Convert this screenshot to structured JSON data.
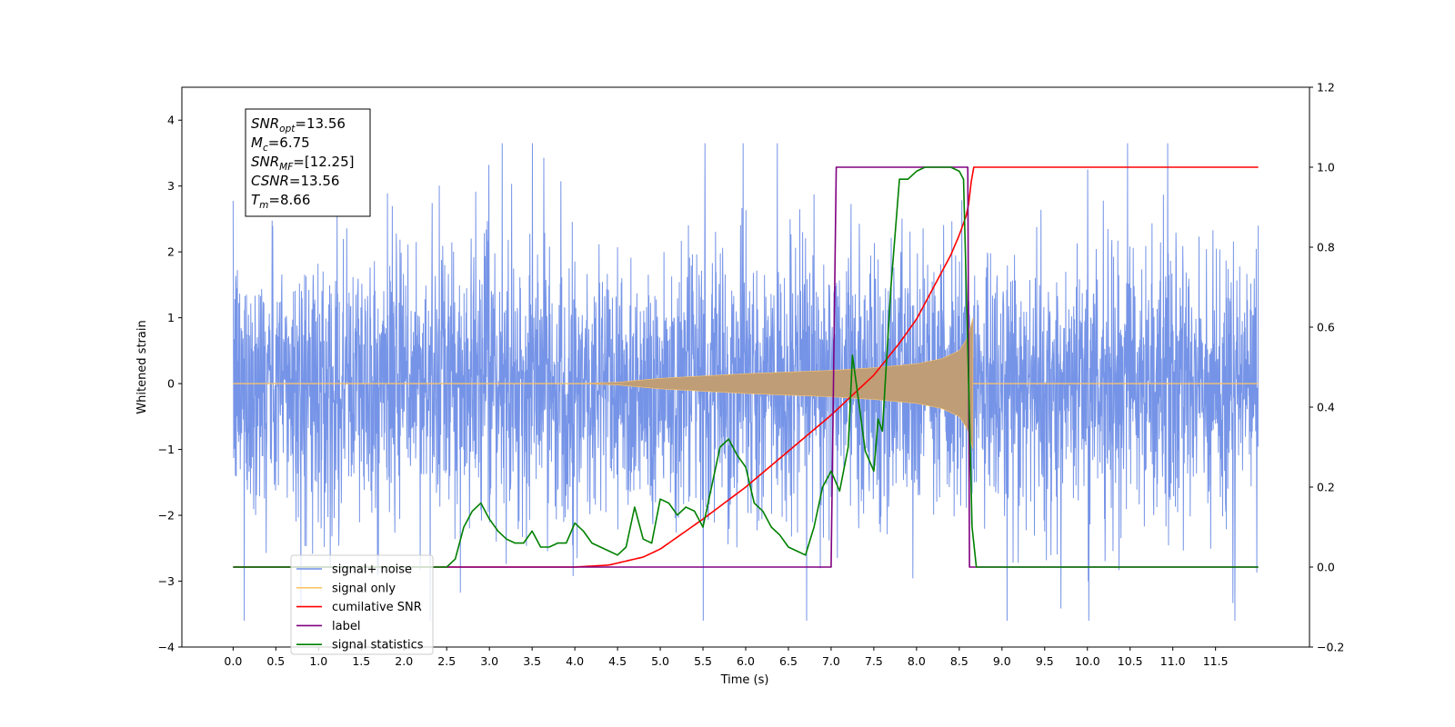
{
  "chart_data": {
    "type": "line",
    "xlabel": "Time (s)",
    "ylabel": "Whitened strain",
    "xlim": [
      -0.6,
      12.6
    ],
    "ylim": [
      -4,
      4.5
    ],
    "ylim_right": [
      -0.2,
      1.2
    ],
    "xticks": [
      "0.0",
      "0.5",
      "1.0",
      "1.5",
      "2.0",
      "2.5",
      "3.0",
      "3.5",
      "4.0",
      "4.5",
      "5.0",
      "5.5",
      "6.0",
      "6.5",
      "7.0",
      "7.5",
      "8.0",
      "8.5",
      "9.0",
      "9.5",
      "10.0",
      "10.5",
      "11.0",
      "11.5"
    ],
    "yticks": [
      "−4",
      "−3",
      "−2",
      "−1",
      "0",
      "1",
      "2",
      "3",
      "4"
    ],
    "yticks_right": [
      "−0.2",
      "0.0",
      "0.2",
      "0.4",
      "0.6",
      "0.8",
      "1.0",
      "1.2"
    ],
    "annotation": {
      "lines": [
        {
          "sym": "SNR",
          "sub": "opt",
          "val": "=13.56"
        },
        {
          "sym": "M",
          "sub": "c",
          "val": "=6.75"
        },
        {
          "sym": "SNR",
          "sub": "MF",
          "val": "=[12.25]"
        },
        {
          "sym": "CSNR",
          "sub": "",
          "val": "=13.56"
        },
        {
          "sym": "T",
          "sub": "m",
          "val": "=8.66"
        }
      ]
    },
    "legend": {
      "placement": "lower-left",
      "entries": [
        {
          "label": "signal+ noise",
          "color": "#6f8ee6"
        },
        {
          "label": "signal only",
          "color": "#ffc566"
        },
        {
          "label": "cumilative SNR",
          "color": "#ff0000"
        },
        {
          "label": "label",
          "color": "#800080"
        },
        {
          "label": "signal statistics",
          "color": "#008000"
        }
      ]
    },
    "series": [
      {
        "name": "signal+ noise",
        "axis": "left",
        "color": "#6f8ee6",
        "x_range": [
          0.0,
          12.0
        ],
        "typical_envelope": [
          -2.3,
          2.3
        ],
        "peak_range": [
          -3.6,
          3.65
        ]
      },
      {
        "name": "signal only",
        "axis": "left",
        "color": "#ffc566",
        "fill_color": "#bf9d76",
        "envelope_x": [
          0.0,
          4.0,
          4.5,
          5.0,
          6.0,
          7.0,
          7.5,
          8.0,
          8.3,
          8.5,
          8.6,
          8.66,
          8.67,
          12.0
        ],
        "envelope_y": [
          0.0,
          0.0,
          0.02,
          0.08,
          0.15,
          0.2,
          0.24,
          0.3,
          0.38,
          0.5,
          0.7,
          1.0,
          0.0,
          0.0
        ]
      },
      {
        "name": "cumilative SNR",
        "axis": "right",
        "color": "#ff0000",
        "x": [
          0.0,
          4.0,
          4.4,
          4.8,
          5.0,
          5.5,
          6.0,
          6.5,
          7.0,
          7.5,
          7.8,
          8.0,
          8.2,
          8.4,
          8.5,
          8.6,
          8.66,
          12.0
        ],
        "y": [
          0.0,
          0.0,
          0.005,
          0.025,
          0.045,
          0.12,
          0.2,
          0.29,
          0.38,
          0.48,
          0.56,
          0.62,
          0.7,
          0.78,
          0.83,
          0.89,
          1.0,
          1.0
        ]
      },
      {
        "name": "label",
        "axis": "right",
        "color": "#800080",
        "x": [
          0.0,
          7.0,
          7.06,
          8.6,
          8.62,
          12.0
        ],
        "y": [
          0.0,
          0.0,
          1.0,
          1.0,
          0.0,
          0.0
        ]
      },
      {
        "name": "signal statistics",
        "axis": "right",
        "color": "#008000",
        "x": [
          0.0,
          2.5,
          2.6,
          2.7,
          2.8,
          2.9,
          3.0,
          3.1,
          3.2,
          3.3,
          3.4,
          3.5,
          3.6,
          3.7,
          3.8,
          3.9,
          4.0,
          4.1,
          4.2,
          4.3,
          4.4,
          4.5,
          4.6,
          4.7,
          4.8,
          4.9,
          5.0,
          5.1,
          5.2,
          5.3,
          5.4,
          5.5,
          5.6,
          5.7,
          5.8,
          5.9,
          6.0,
          6.1,
          6.2,
          6.3,
          6.4,
          6.5,
          6.6,
          6.7,
          6.8,
          6.9,
          7.0,
          7.1,
          7.2,
          7.25,
          7.3,
          7.4,
          7.5,
          7.55,
          7.6,
          7.7,
          7.8,
          7.9,
          8.0,
          8.1,
          8.2,
          8.3,
          8.4,
          8.5,
          8.55,
          8.6,
          8.65,
          8.7,
          8.75,
          9.0,
          12.0
        ],
        "y": [
          0.0,
          0.0,
          0.02,
          0.1,
          0.14,
          0.16,
          0.12,
          0.09,
          0.07,
          0.06,
          0.06,
          0.09,
          0.05,
          0.05,
          0.06,
          0.06,
          0.11,
          0.09,
          0.06,
          0.05,
          0.04,
          0.03,
          0.05,
          0.15,
          0.07,
          0.06,
          0.17,
          0.16,
          0.13,
          0.15,
          0.14,
          0.1,
          0.2,
          0.3,
          0.32,
          0.28,
          0.25,
          0.16,
          0.14,
          0.1,
          0.08,
          0.05,
          0.04,
          0.03,
          0.1,
          0.2,
          0.24,
          0.19,
          0.3,
          0.53,
          0.45,
          0.29,
          0.24,
          0.37,
          0.34,
          0.7,
          0.97,
          0.97,
          0.99,
          1.0,
          1.0,
          1.0,
          1.0,
          0.99,
          0.97,
          0.55,
          0.1,
          0.0,
          0.0,
          0.0,
          0.0
        ]
      }
    ]
  }
}
